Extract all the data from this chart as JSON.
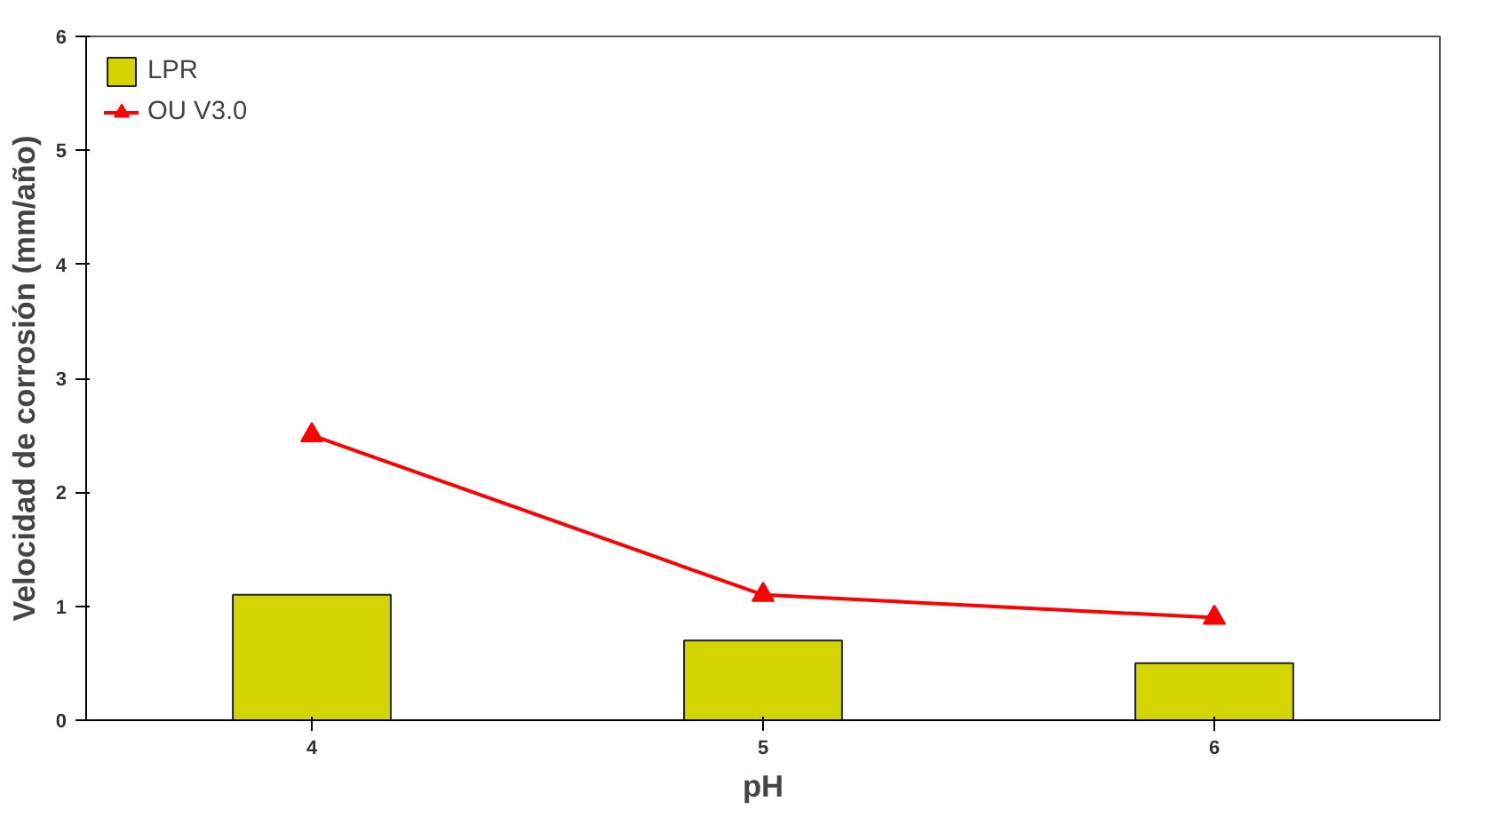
{
  "chart_data": {
    "type": "bar",
    "xlabel": "pH",
    "ylabel": "Velocidad de corrosión (mm/año)",
    "categories": [
      "4",
      "5",
      "6"
    ],
    "series": [
      {
        "name": "LPR",
        "color": "#d4d400",
        "values": [
          1.1,
          0.7,
          0.5
        ]
      },
      {
        "name": "OU V3.0",
        "type": "line",
        "color": "#ff0000",
        "values": [
          2.5,
          1.1,
          0.9
        ],
        "marker": "triangle"
      }
    ],
    "ylim": [
      0,
      6
    ],
    "yticks": [
      0,
      1,
      2,
      3,
      4,
      5,
      6
    ],
    "grid": false,
    "legend": "top left"
  }
}
